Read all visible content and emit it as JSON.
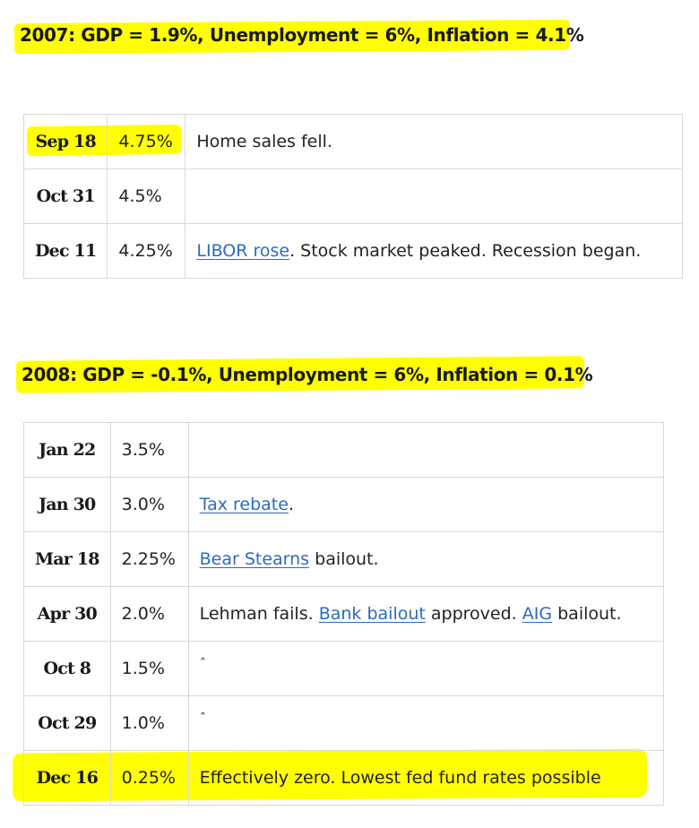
{
  "section_2007": {
    "heading": "2007: GDP = 1.9%, Unemployment = 6%, Inflation = 4.1%",
    "rows": [
      {
        "date": "Sep 18",
        "rate": "4.75%",
        "note": "Home sales fell."
      },
      {
        "date": "Oct 31",
        "rate": "4.5%",
        "note": ""
      },
      {
        "date": "Dec 11",
        "rate": "4.25%",
        "link": "LIBOR rose",
        "note_after": ". Stock market peaked. Recession began."
      }
    ]
  },
  "section_2008": {
    "heading": "2008: GDP = -0.1%, Unemployment = 6%, Inflation = 0.1%",
    "rows": [
      {
        "date": "Jan 22",
        "rate": "3.5%",
        "note": ""
      },
      {
        "date": "Jan 30",
        "rate": "3.0%",
        "link": "Tax rebate",
        "note_after": "."
      },
      {
        "date": "Mar 18",
        "rate": "2.25%",
        "link": "Bear Stearns",
        "note_after": " bailout."
      },
      {
        "date": "Apr 30",
        "rate": "2.0%",
        "note_before": "Lehman fails. ",
        "link": "Bank bailout",
        "note_mid": " approved. ",
        "link2": "AIG",
        "note_after": " bailout."
      },
      {
        "date": "Oct 8",
        "rate": "1.5%",
        "note": "ˆ"
      },
      {
        "date": "Oct 29",
        "rate": "1.0%",
        "note": "ˆ"
      },
      {
        "date": "Dec 16",
        "rate": "0.25%",
        "note": "Effectively zero. Lowest fed fund rates possible"
      }
    ]
  },
  "colors": {
    "highlight": "#ffff00",
    "link": "#2a6bc2",
    "border": "#d9d9d9"
  }
}
